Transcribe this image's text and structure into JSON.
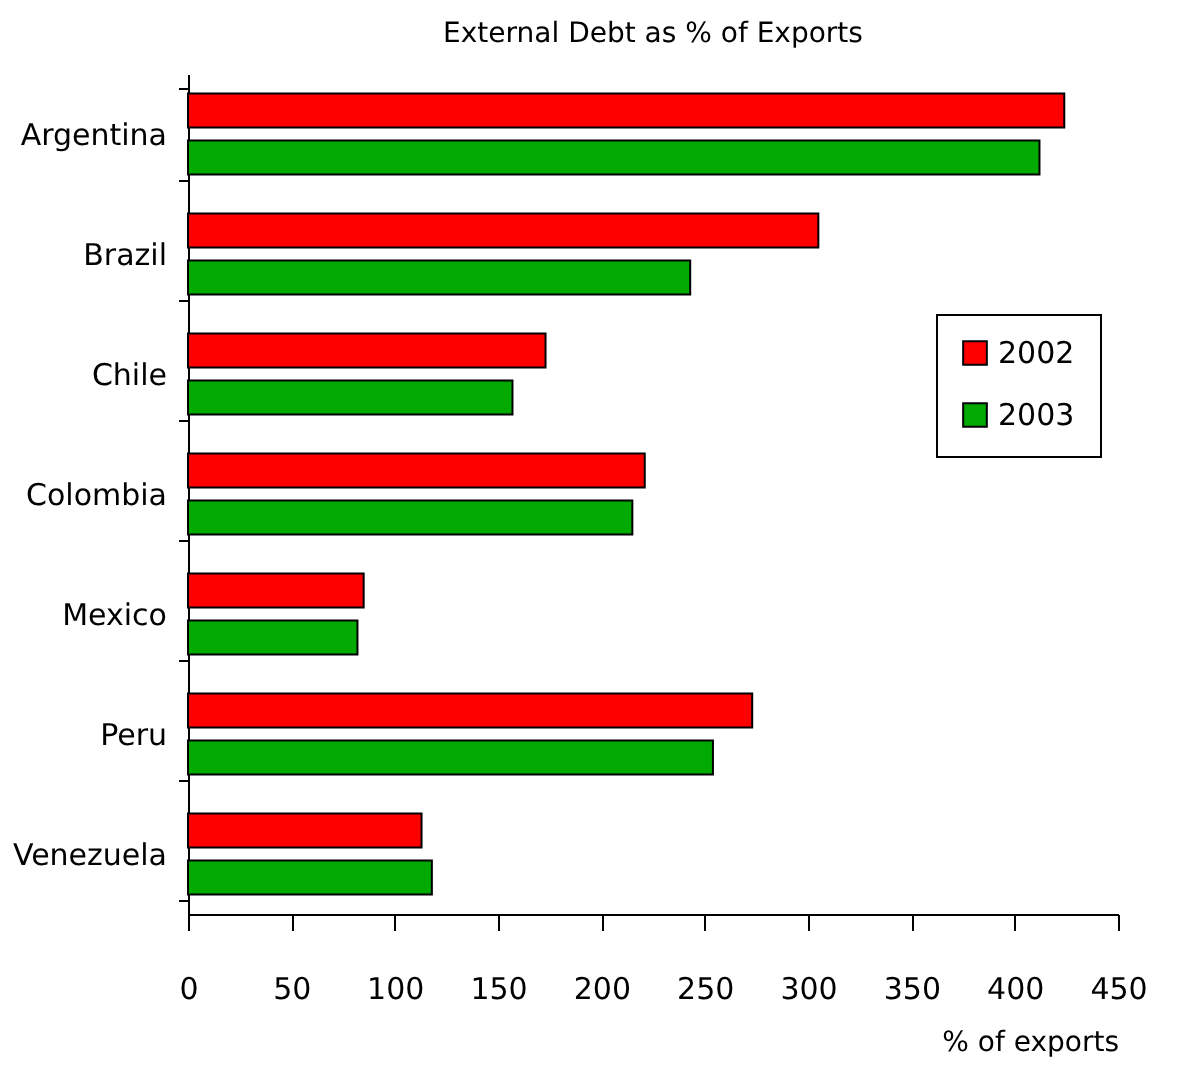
{
  "chart_data": {
    "type": "bar",
    "orientation": "horizontal",
    "title": "External Debt as % of Exports",
    "xlabel": "% of exports",
    "categories": [
      "Argentina",
      "Brazil",
      "Chile",
      "Colombia",
      "Mexico",
      "Peru",
      "Venezuela"
    ],
    "series": [
      {
        "name": "2002",
        "color": "#ff0000",
        "values": [
          424,
          305,
          173,
          221,
          85,
          273,
          113
        ]
      },
      {
        "name": "2003",
        "color": "#00aa00",
        "values": [
          412,
          243,
          157,
          215,
          82,
          254,
          118
        ]
      }
    ],
    "xlim": [
      0,
      450
    ],
    "xticks": [
      0,
      50,
      100,
      150,
      200,
      250,
      300,
      350,
      400,
      450
    ],
    "grid": false,
    "legend": "right"
  }
}
